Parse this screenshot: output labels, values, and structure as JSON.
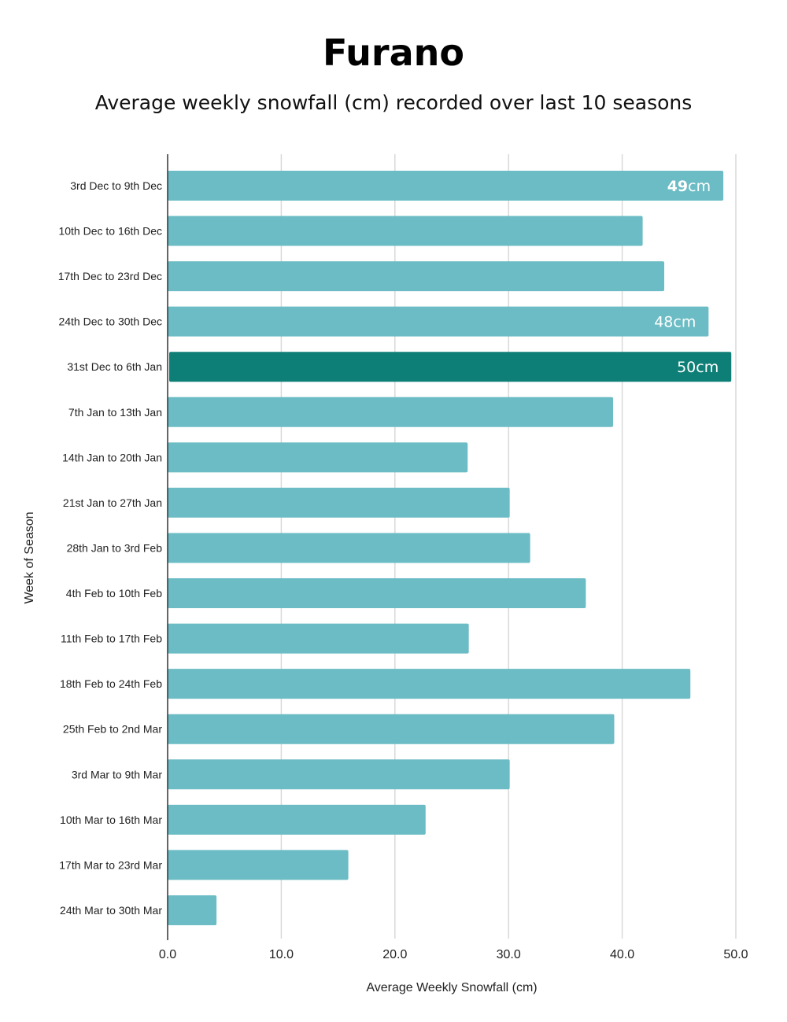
{
  "chart_data": {
    "type": "bar",
    "orientation": "horizontal",
    "title": "Furano",
    "subtitle": "Average weekly snowfall (cm) recorded over last 10 seasons",
    "xlabel": "Average Weekly Snowfall (cm)",
    "ylabel": "Week of Season",
    "xlim": [
      0,
      50
    ],
    "xticks": [
      "0.0",
      "10.0",
      "20.0",
      "30.0",
      "40.0",
      "50.0"
    ],
    "grid": true,
    "categories": [
      "3rd Dec to 9th Dec",
      "10th Dec to 16th Dec",
      "17th Dec to 23rd Dec",
      "24th Dec to  30th Dec",
      "31st Dec to 6th Jan",
      "7th Jan to 13th Jan",
      "14th Jan to 20th Jan",
      "21st Jan to 27th Jan",
      "28th Jan to 3rd Feb",
      "4th Feb to 10th Feb",
      "11th Feb to 17th Feb",
      "18th Feb to 24th Feb",
      "25th Feb to 2nd Mar",
      "3rd Mar to 9th Mar",
      "10th Mar to 16th Mar",
      "17th Mar to 23rd Mar",
      "24th Mar to 30th Mar"
    ],
    "values": [
      48.9,
      41.8,
      43.7,
      47.6,
      49.6,
      39.2,
      26.4,
      30.1,
      31.9,
      36.8,
      26.5,
      46.0,
      39.3,
      30.1,
      22.7,
      15.9,
      4.3
    ],
    "highlight_index": 4,
    "data_labels": [
      {
        "index": 0,
        "number": "49",
        "unit": "cm"
      },
      {
        "index": 3,
        "number": "48",
        "unit": "cm"
      },
      {
        "index": 4,
        "number": "50",
        "unit": "cm"
      }
    ],
    "colors": {
      "bar": "#6bbcc4",
      "highlight": "#0e7f76",
      "grid": "#d9d9d9",
      "axis": "#333333"
    }
  }
}
